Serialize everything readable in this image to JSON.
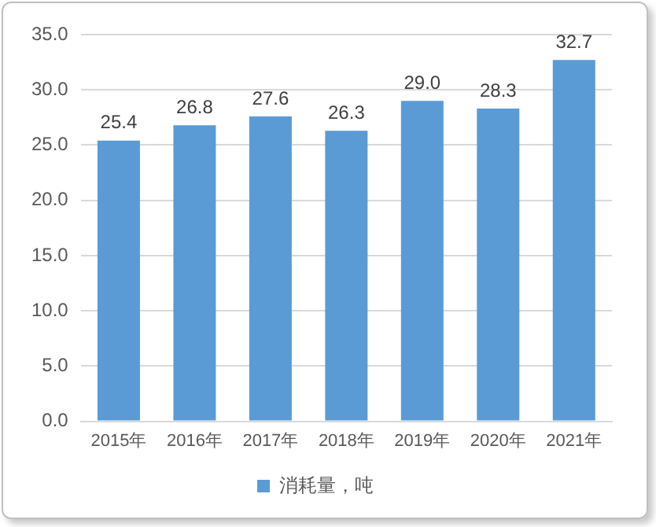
{
  "chart_data": {
    "type": "bar",
    "categories": [
      "2015年",
      "2016年",
      "2017年",
      "2018年",
      "2019年",
      "2020年",
      "2021年"
    ],
    "series": [
      {
        "name": "消耗量，吨",
        "color": "#5b9bd5",
        "values": [
          25.4,
          26.8,
          27.6,
          26.3,
          29.0,
          28.3,
          32.7
        ],
        "value_labels": [
          "25.4",
          "26.8",
          "27.6",
          "26.3",
          "29.0",
          "28.3",
          "32.7"
        ]
      }
    ],
    "ylim": [
      0,
      35
    ],
    "yticks": [
      {
        "value": 0,
        "label": "0.0"
      },
      {
        "value": 5,
        "label": "5.0"
      },
      {
        "value": 10,
        "label": "10.0"
      },
      {
        "value": 15,
        "label": "15.0"
      },
      {
        "value": 20,
        "label": "20.0"
      },
      {
        "value": 25,
        "label": "25.0"
      },
      {
        "value": 30,
        "label": "30.0"
      },
      {
        "value": 35,
        "label": "35.0"
      }
    ],
    "grid": "y",
    "legend": "bottom"
  }
}
